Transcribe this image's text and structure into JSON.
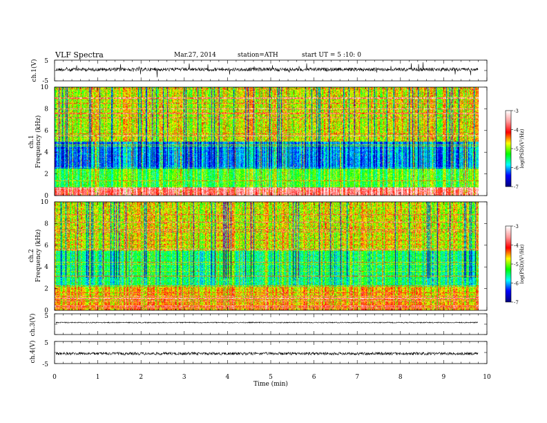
{
  "header": {
    "title": "VLF Spectra",
    "date": "Mar.27, 2014",
    "station": "station=ATH",
    "start": "start  UT =   5  :10: 0"
  },
  "colors": {
    "spectrogram_background": "#00008f",
    "colormap": [
      "#000080",
      "#0000ff",
      "#00ffff",
      "#00ff00",
      "#ffff00",
      "#ff0000",
      "#ff9999",
      "#ffffff"
    ],
    "trace": "#000000"
  },
  "chart_data": [
    {
      "type": "line",
      "name": "ch1-waveform",
      "ylabel": "ch.1(V)",
      "ylim": [
        -5,
        5
      ],
      "yticks": [
        "5",
        "-5"
      ],
      "approx_mean": 0,
      "approx_amplitude": 0.8
    },
    {
      "type": "heatmap",
      "name": "ch1-spectrogram",
      "ylabel_top": "ch.1",
      "ylabel": "Frequency  (kHz)",
      "ylim": [
        0,
        10
      ],
      "yticks": [
        "0",
        "2",
        "4",
        "6",
        "8",
        "10"
      ],
      "xlim": [
        0,
        10
      ],
      "data_end_min": 9.8,
      "colorbar": {
        "label": "log(PSD)(V²/Hz)",
        "range": [
          -7,
          -3
        ],
        "ticks": [
          "-3",
          "-4",
          "-5",
          "-6",
          "-7"
        ]
      }
    },
    {
      "type": "heatmap",
      "name": "ch2-spectrogram",
      "ylabel_top": "ch.2",
      "ylabel": "Frequency  (kHz)",
      "ylim": [
        0,
        10
      ],
      "yticks": [
        "0",
        "2",
        "4",
        "6",
        "8",
        "10"
      ],
      "xlim": [
        0,
        10
      ],
      "data_end_min": 9.8,
      "colorbar": {
        "label": "log(PSD)(V²/Hz)",
        "range": [
          -7,
          -3
        ],
        "ticks": [
          "-3",
          "-4",
          "-5",
          "-6",
          "-7"
        ]
      }
    },
    {
      "type": "line",
      "name": "ch3-waveform",
      "ylabel": "ch.3(V)",
      "ylim": [
        -5,
        5
      ],
      "yticks": [
        "5"
      ],
      "approx_mean": 0,
      "approx_amplitude": 0.1
    },
    {
      "type": "line",
      "name": "ch4-waveform",
      "ylabel": "ch.4(V)",
      "ylim": [
        -5,
        5
      ],
      "yticks": [
        "5",
        "-5"
      ],
      "approx_mean": 0,
      "approx_amplitude": 0.3
    }
  ],
  "x_axis": {
    "label": "Time  (min)",
    "range": [
      0,
      10
    ],
    "ticks": [
      "0",
      "1",
      "2",
      "3",
      "4",
      "5",
      "6",
      "7",
      "8",
      "9",
      "10"
    ]
  }
}
